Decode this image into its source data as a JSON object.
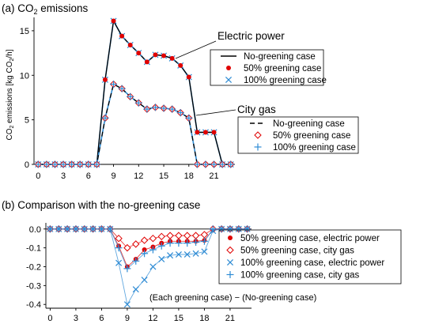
{
  "chart_data": [
    {
      "type": "line",
      "title_prefix": "(a) CO",
      "title_sub": "2",
      "title_suffix": " emissions",
      "ylabel_prefix": "CO",
      "ylabel_sub": "2",
      "ylabel_mid": " emissions [kg CO",
      "ylabel_sub2": "2",
      "ylabel_suffix": "/h]",
      "x": [
        0,
        1,
        2,
        3,
        4,
        5,
        6,
        7,
        8,
        9,
        10,
        11,
        12,
        13,
        14,
        15,
        16,
        17,
        18,
        19,
        20,
        21,
        22,
        23
      ],
      "xticks": [
        0,
        3,
        6,
        9,
        12,
        15,
        18,
        21
      ],
      "yticks": [
        0,
        5,
        10,
        15
      ],
      "xlim": [
        -0.5,
        23.5
      ],
      "ylim": [
        0,
        16.5
      ],
      "groups": [
        {
          "name": "Electric power",
          "values": [
            0,
            0,
            0,
            0,
            0,
            0,
            0,
            0,
            9.5,
            16.1,
            14.4,
            13.4,
            12.5,
            11.5,
            12.3,
            12.2,
            11.9,
            11.1,
            9.8,
            3.6,
            3.6,
            3.6,
            0,
            0
          ],
          "legend": [
            "No-greening case",
            "50% greening case",
            "100% greening case"
          ]
        },
        {
          "name": "City gas",
          "values": [
            0,
            0,
            0,
            0,
            0,
            0,
            0,
            0,
            5.2,
            9.0,
            8.5,
            7.6,
            6.9,
            6.2,
            6.4,
            6.3,
            6.2,
            5.8,
            5.2,
            0,
            0,
            0,
            0,
            0
          ],
          "legend": [
            "No-greening case",
            "50% greening case",
            "100% greening case"
          ]
        }
      ]
    },
    {
      "type": "line",
      "title": "(b) Comparison with the no-greening case",
      "annotation": "(Each greening case) − (No-greening case)",
      "x": [
        0,
        1,
        2,
        3,
        4,
        5,
        6,
        7,
        8,
        9,
        10,
        11,
        12,
        13,
        14,
        15,
        16,
        17,
        18,
        19,
        20,
        21,
        22,
        23
      ],
      "xticks": [
        0,
        3,
        6,
        9,
        12,
        15,
        18,
        21
      ],
      "yticks": [
        "0.0",
        "-0.1",
        "-0.2",
        "-0.3",
        "-0.4"
      ],
      "xlim": [
        -0.5,
        23.5
      ],
      "ylim": [
        -0.42,
        0.02
      ],
      "series": [
        {
          "name": "50% greening case, electric power",
          "color": "#e00000",
          "marker": "dot",
          "values": [
            0,
            0,
            0,
            0,
            0,
            0,
            0,
            0,
            -0.09,
            -0.2,
            -0.16,
            -0.11,
            -0.095,
            -0.075,
            -0.065,
            -0.065,
            -0.065,
            -0.065,
            -0.06,
            -0.005,
            0,
            0,
            0,
            0
          ]
        },
        {
          "name": "50% greening case, city gas",
          "color": "#e00000",
          "marker": "diamond",
          "values": [
            0,
            0,
            0,
            0,
            0,
            0,
            0,
            0,
            -0.05,
            -0.1,
            -0.08,
            -0.06,
            -0.05,
            -0.04,
            -0.035,
            -0.035,
            -0.035,
            -0.035,
            -0.03,
            0,
            0,
            0,
            0,
            0
          ]
        },
        {
          "name": "100% greening case, electric power",
          "color": "#2e8bd4",
          "marker": "x",
          "values": [
            0,
            0,
            0,
            0,
            0,
            0,
            0,
            0,
            -0.18,
            -0.4,
            -0.32,
            -0.27,
            -0.2,
            -0.16,
            -0.14,
            -0.135,
            -0.135,
            -0.13,
            -0.12,
            -0.01,
            0,
            0,
            0,
            0
          ]
        },
        {
          "name": "100% greening case, city gas",
          "color": "#2e8bd4",
          "marker": "plus",
          "values": [
            0,
            0,
            0,
            0,
            0,
            0,
            0,
            0,
            -0.1,
            -0.21,
            -0.17,
            -0.13,
            -0.11,
            -0.09,
            -0.075,
            -0.075,
            -0.075,
            -0.07,
            -0.065,
            0,
            0,
            0,
            0,
            0
          ]
        }
      ]
    }
  ]
}
